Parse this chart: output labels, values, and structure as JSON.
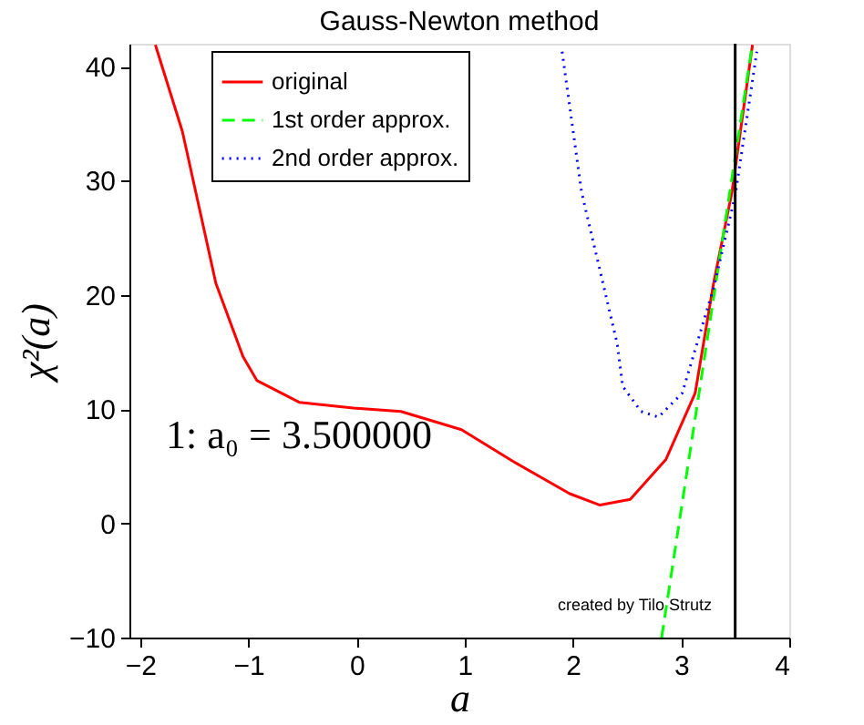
{
  "chart_data": {
    "type": "line",
    "title": "Gauss-Newton method",
    "xlabel": "a",
    "ylabel": "χ²(a)",
    "xlim": [
      -2.1,
      4
    ],
    "ylim": [
      -10,
      42
    ],
    "xticks": [
      -2,
      -1,
      0,
      1,
      2,
      3,
      4
    ],
    "yticks": [
      -10,
      0,
      10,
      20,
      30,
      40
    ],
    "grid": false,
    "legend": "top",
    "marker": "none",
    "series": [
      {
        "name": "original",
        "color": "#ff0000",
        "line_style": "solid",
        "x": [
          -1.86,
          -1.61,
          -1.3,
          -1.05,
          -0.92,
          -0.53,
          -0.03,
          0.41,
          0.97,
          1.47,
          1.97,
          2.25,
          2.53,
          2.86,
          3.13,
          3.3,
          3.47,
          3.66
        ],
        "values": [
          41.9,
          34.3,
          21.0,
          14.6,
          12.5,
          10.6,
          10.1,
          9.8,
          8.2,
          5.3,
          2.6,
          1.6,
          2.1,
          5.6,
          11.4,
          21.0,
          29.0,
          41.9
        ]
      },
      {
        "name": "1st order approx.",
        "color": "#00ff00",
        "line_style": "dashed",
        "x": [
          2.82,
          3.66
        ],
        "values": [
          -10,
          42
        ]
      },
      {
        "name": "2nd order approx.",
        "color": "#0000ff",
        "line_style": "dotted",
        "x": [
          1.9,
          2.08,
          2.41,
          2.46,
          2.63,
          2.79,
          3.01,
          3.3,
          3.5,
          3.7
        ],
        "values": [
          41.3,
          29.0,
          15.7,
          12.0,
          9.8,
          9.3,
          11.4,
          20.6,
          28.7,
          41.3
        ]
      }
    ],
    "ref_lines": [
      {
        "axis": "x",
        "value": 3.5,
        "color": "#000000",
        "line_style": "solid"
      }
    ],
    "annotations": [
      "1: a₀ = 3.500000",
      "created by Tilo Strutz"
    ]
  }
}
